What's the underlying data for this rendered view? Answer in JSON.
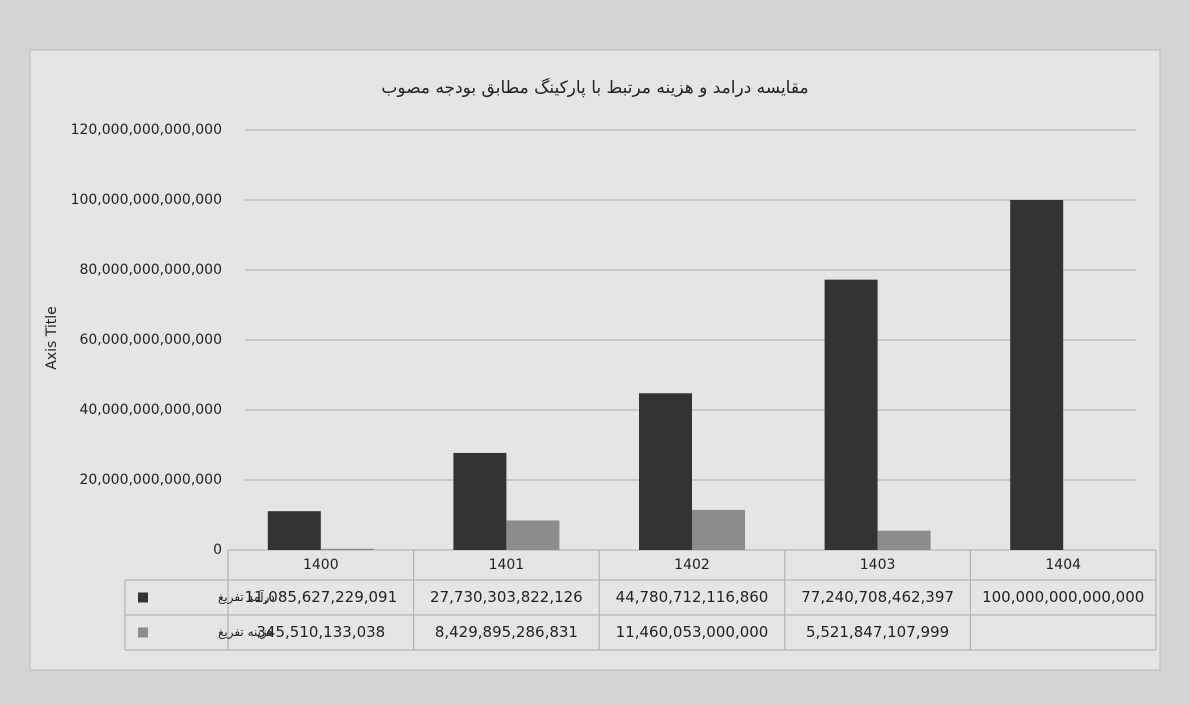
{
  "chart_data": {
    "type": "bar",
    "title": "مقایسه درامد و هزینه مرتبط با پارکینگ مطابق بودجه مصوب",
    "y_label": "Axis Title",
    "categories": [
      "1400",
      "1401",
      "1402",
      "1403",
      "1404"
    ],
    "series": [
      {
        "name": "درآمد تفریغ",
        "color": "#333333",
        "values": [
          11085627229091,
          27730303822126,
          44780712116860,
          77240708462397,
          100000000000000
        ],
        "value_labels": [
          "11,085,627,229,091",
          "27,730,303,822,126",
          "44,780,712,116,860",
          "77,240,708,462,397",
          "100,000,000,000,000"
        ]
      },
      {
        "name": "هزینه تفریغ",
        "color": "#8c8c8c",
        "values": [
          345510133038,
          8429895286831,
          11460053000000,
          5521847107999,
          null
        ],
        "value_labels": [
          "345,510,133,038",
          "8,429,895,286,831",
          "11,460,053,000,000",
          "5,521,847,107,999",
          null
        ]
      }
    ],
    "ylim": [
      0,
      120000000000000
    ],
    "yticks": [
      0,
      {
        "value": 20000000000000,
        "label": "20,000,000,000,000"
      },
      {
        "value": 40000000000000,
        "label": "40,000,000,000,000"
      },
      {
        "value": 60000000000000,
        "label": "60,000,000,000,000"
      },
      {
        "value": 80000000000000,
        "label": "80,000,000,000,000"
      },
      {
        "value": 100000000000000,
        "label": "100,000,000,000,000"
      },
      {
        "value": 120000000000000,
        "label": "120,000,000,000,000"
      }
    ],
    "grid": true
  }
}
